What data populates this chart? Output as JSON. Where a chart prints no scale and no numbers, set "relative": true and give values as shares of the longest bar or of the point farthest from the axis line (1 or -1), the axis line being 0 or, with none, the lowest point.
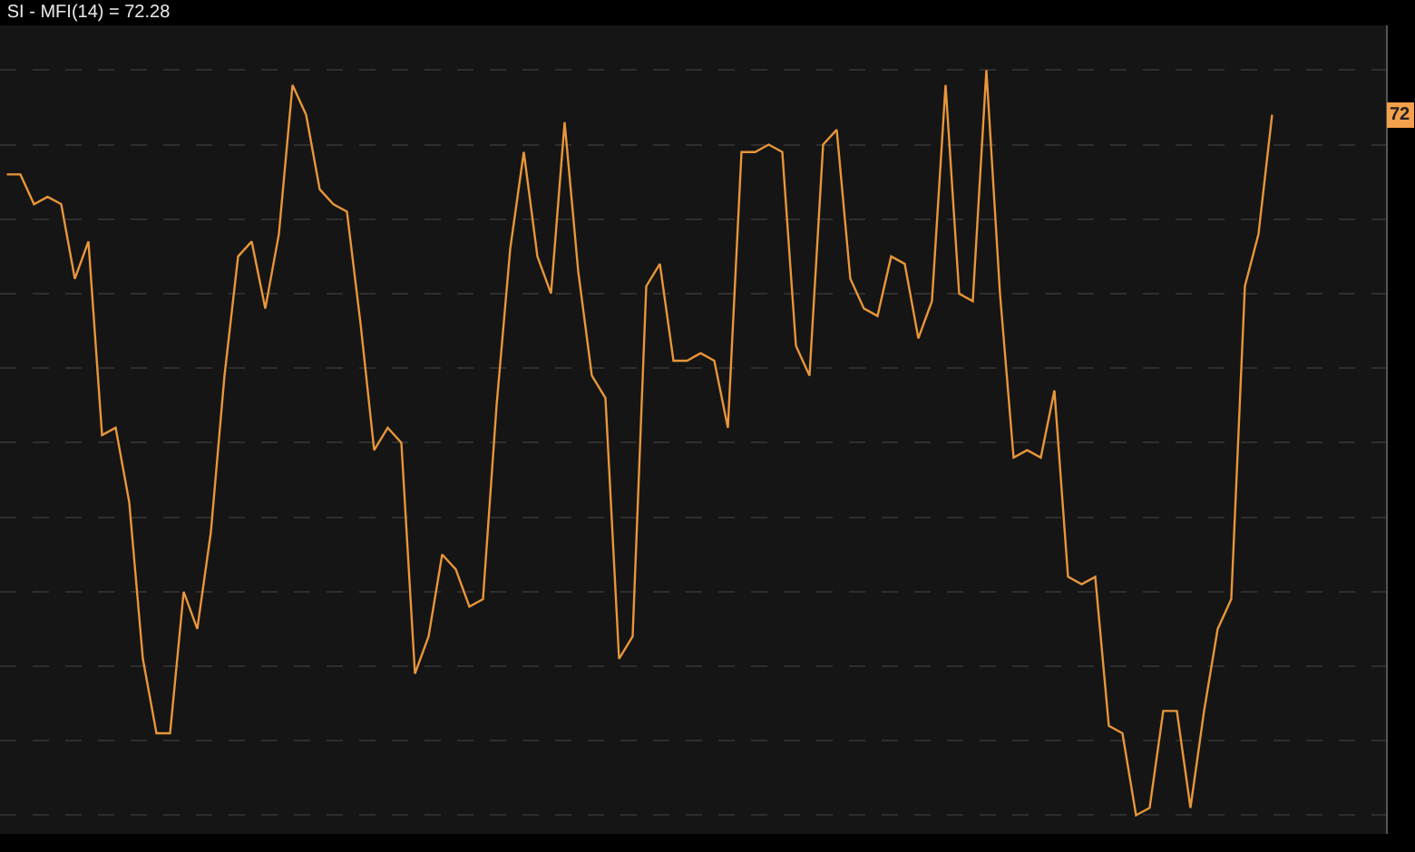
{
  "chart_data": {
    "type": "line",
    "title": "SI - MFI(14) = 72.28",
    "relative": true,
    "grid": true,
    "marker": "none",
    "line_style": "solid",
    "categories": [
      null,
      null,
      null,
      null,
      null,
      null,
      null,
      null,
      null,
      null,
      null,
      null,
      null,
      null,
      null,
      null,
      null,
      null,
      null,
      null,
      null,
      null,
      null,
      null,
      null,
      null,
      null,
      null,
      null,
      null,
      null,
      null,
      null,
      null,
      null,
      null,
      null,
      null,
      null,
      null,
      null,
      null,
      null,
      null,
      null,
      null,
      null,
      null,
      null,
      null,
      null,
      null,
      null,
      null,
      null,
      null,
      null,
      null,
      null,
      null,
      null,
      null,
      null,
      null,
      null,
      null,
      null,
      null,
      null,
      null,
      null,
      null,
      null,
      null,
      null,
      null,
      null,
      null,
      null,
      null,
      null,
      null,
      null,
      null,
      null,
      null,
      null,
      null,
      null,
      null,
      null,
      null,
      null,
      null
    ],
    "series": [
      {
        "color": "#e8963a",
        "values": [
          0.86,
          0.86,
          0.82,
          0.83,
          0.82,
          0.72,
          0.77,
          0.51,
          0.52,
          0.42,
          0.21,
          0.11,
          0.11,
          0.3,
          0.25,
          0.38,
          0.59,
          0.75,
          0.77,
          0.68,
          0.78,
          0.98,
          0.94,
          0.84,
          0.82,
          0.81,
          0.66,
          0.49,
          0.52,
          0.5,
          0.19,
          0.24,
          0.35,
          0.33,
          0.28,
          0.29,
          0.55,
          0.76,
          0.89,
          0.75,
          0.7,
          0.93,
          0.73,
          0.59,
          0.56,
          0.21,
          0.24,
          0.71,
          0.74,
          0.61,
          0.61,
          0.62,
          0.61,
          0.52,
          0.89,
          0.89,
          0.9,
          0.89,
          0.63,
          0.59,
          0.9,
          0.92,
          0.72,
          0.68,
          0.67,
          0.75,
          0.74,
          0.64,
          0.69,
          0.98,
          0.7,
          0.69,
          1.0,
          0.7,
          0.48,
          0.49,
          0.48,
          0.57,
          0.32,
          0.31,
          0.32,
          0.12,
          0.11,
          0,
          0.01,
          0.14,
          0.14,
          0.01,
          0.14,
          0.25,
          0.29,
          0.71,
          0.78,
          0.94
        ]
      }
    ],
    "annotations": [
      "72"
    ]
  }
}
